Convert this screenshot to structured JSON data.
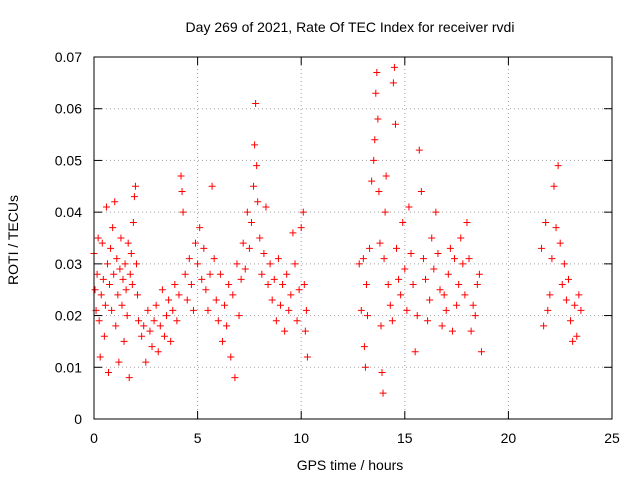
{
  "chart_data": {
    "type": "scatter",
    "title": "Day 269 of 2021, Rate Of TEC Index for receiver rvdi",
    "xlabel": "GPS time / hours",
    "ylabel": "ROTI / TECUs",
    "xlim": [
      0,
      25
    ],
    "ylim": [
      0,
      0.07
    ],
    "x_ticks": [
      0,
      5,
      10,
      15,
      20,
      25
    ],
    "x_tick_labels": [
      "0",
      "5",
      "10",
      "15",
      "20",
      "25"
    ],
    "y_ticks": [
      0,
      0.01,
      0.02,
      0.03,
      0.04,
      0.05,
      0.06,
      0.07
    ],
    "y_tick_labels": [
      "0",
      "0.01",
      "0.02",
      "0.03",
      "0.04",
      "0.05",
      "0.06",
      "0.07"
    ],
    "grid": true,
    "marker": "plus",
    "color": "#ff0000",
    "series": [
      {
        "points": [
          [
            0.0,
            0.032
          ],
          [
            0.05,
            0.025
          ],
          [
            0.1,
            0.021
          ],
          [
            0.15,
            0.028
          ],
          [
            0.2,
            0.035
          ],
          [
            0.25,
            0.019
          ],
          [
            0.3,
            0.012
          ],
          [
            0.35,
            0.024
          ],
          [
            0.4,
            0.034
          ],
          [
            0.45,
            0.027
          ],
          [
            0.5,
            0.016
          ],
          [
            0.55,
            0.022
          ],
          [
            0.6,
            0.041
          ],
          [
            0.65,
            0.03
          ],
          [
            0.7,
            0.009
          ],
          [
            0.75,
            0.026
          ],
          [
            0.8,
            0.033
          ],
          [
            0.85,
            0.021
          ],
          [
            0.9,
            0.037
          ],
          [
            0.95,
            0.028
          ],
          [
            1.0,
            0.042
          ],
          [
            1.05,
            0.018
          ],
          [
            1.1,
            0.031
          ],
          [
            1.15,
            0.024
          ],
          [
            1.2,
            0.011
          ],
          [
            1.25,
            0.029
          ],
          [
            1.3,
            0.035
          ],
          [
            1.35,
            0.022
          ],
          [
            1.4,
            0.027
          ],
          [
            1.45,
            0.015
          ],
          [
            1.5,
            0.03
          ],
          [
            1.55,
            0.025
          ],
          [
            1.6,
            0.02
          ],
          [
            1.65,
            0.034
          ],
          [
            1.7,
            0.008
          ],
          [
            1.75,
            0.028
          ],
          [
            1.8,
            0.032
          ],
          [
            1.85,
            0.026
          ],
          [
            1.9,
            0.038
          ],
          [
            1.95,
            0.043
          ],
          [
            2.0,
            0.045
          ],
          [
            2.05,
            0.03
          ],
          [
            2.1,
            0.024
          ],
          [
            2.15,
            0.019
          ],
          [
            2.3,
            0.016
          ],
          [
            2.4,
            0.018
          ],
          [
            2.5,
            0.011
          ],
          [
            2.6,
            0.021
          ],
          [
            2.7,
            0.017
          ],
          [
            2.8,
            0.014
          ],
          [
            2.9,
            0.019
          ],
          [
            3.0,
            0.022
          ],
          [
            3.1,
            0.013
          ],
          [
            3.2,
            0.018
          ],
          [
            3.3,
            0.025
          ],
          [
            3.4,
            0.016
          ],
          [
            3.5,
            0.02
          ],
          [
            3.6,
            0.023
          ],
          [
            3.7,
            0.015
          ],
          [
            3.8,
            0.021
          ],
          [
            3.9,
            0.026
          ],
          [
            4.0,
            0.019
          ],
          [
            4.1,
            0.024
          ],
          [
            4.2,
            0.047
          ],
          [
            4.25,
            0.044
          ],
          [
            4.3,
            0.04
          ],
          [
            4.4,
            0.028
          ],
          [
            4.5,
            0.023
          ],
          [
            4.6,
            0.031
          ],
          [
            4.7,
            0.026
          ],
          [
            4.8,
            0.021
          ],
          [
            4.9,
            0.034
          ],
          [
            5.0,
            0.03
          ],
          [
            5.1,
            0.037
          ],
          [
            5.2,
            0.027
          ],
          [
            5.3,
            0.033
          ],
          [
            5.4,
            0.025
          ],
          [
            5.5,
            0.021
          ],
          [
            5.6,
            0.028
          ],
          [
            5.7,
            0.045
          ],
          [
            5.8,
            0.031
          ],
          [
            5.9,
            0.023
          ],
          [
            6.0,
            0.019
          ],
          [
            6.1,
            0.028
          ],
          [
            6.2,
            0.015
          ],
          [
            6.3,
            0.022
          ],
          [
            6.4,
            0.018
          ],
          [
            6.5,
            0.026
          ],
          [
            6.6,
            0.012
          ],
          [
            6.7,
            0.024
          ],
          [
            6.8,
            0.008
          ],
          [
            6.9,
            0.03
          ],
          [
            7.0,
            0.02
          ],
          [
            7.1,
            0.027
          ],
          [
            7.2,
            0.034
          ],
          [
            7.3,
            0.029
          ],
          [
            7.4,
            0.04
          ],
          [
            7.5,
            0.033
          ],
          [
            7.6,
            0.038
          ],
          [
            7.7,
            0.045
          ],
          [
            7.75,
            0.053
          ],
          [
            7.8,
            0.061
          ],
          [
            7.85,
            0.049
          ],
          [
            7.9,
            0.042
          ],
          [
            8.0,
            0.035
          ],
          [
            8.1,
            0.028
          ],
          [
            8.2,
            0.032
          ],
          [
            8.3,
            0.041
          ],
          [
            8.4,
            0.026
          ],
          [
            8.5,
            0.03
          ],
          [
            8.6,
            0.023
          ],
          [
            8.7,
            0.027
          ],
          [
            8.8,
            0.019
          ],
          [
            8.9,
            0.031
          ],
          [
            9.0,
            0.022
          ],
          [
            9.1,
            0.026
          ],
          [
            9.2,
            0.017
          ],
          [
            9.3,
            0.028
          ],
          [
            9.4,
            0.021
          ],
          [
            9.5,
            0.024
          ],
          [
            9.6,
            0.036
          ],
          [
            9.7,
            0.03
          ],
          [
            9.8,
            0.019
          ],
          [
            9.9,
            0.025
          ],
          [
            10.0,
            0.037
          ],
          [
            10.1,
            0.04
          ],
          [
            10.15,
            0.026
          ],
          [
            10.2,
            0.017
          ],
          [
            10.25,
            0.021
          ],
          [
            10.3,
            0.012
          ],
          [
            12.8,
            0.03
          ],
          [
            12.9,
            0.021
          ],
          [
            13.0,
            0.031
          ],
          [
            13.05,
            0.014
          ],
          [
            13.1,
            0.01
          ],
          [
            13.15,
            0.026
          ],
          [
            13.2,
            0.02
          ],
          [
            13.3,
            0.033
          ],
          [
            13.4,
            0.046
          ],
          [
            13.5,
            0.05
          ],
          [
            13.55,
            0.054
          ],
          [
            13.6,
            0.063
          ],
          [
            13.65,
            0.067
          ],
          [
            13.7,
            0.058
          ],
          [
            13.75,
            0.044
          ],
          [
            13.8,
            0.034
          ],
          [
            13.85,
            0.018
          ],
          [
            13.9,
            0.009
          ],
          [
            13.95,
            0.005
          ],
          [
            14.0,
            0.031
          ],
          [
            14.05,
            0.04
          ],
          [
            14.1,
            0.047
          ],
          [
            14.2,
            0.026
          ],
          [
            14.3,
            0.022
          ],
          [
            14.4,
            0.019
          ],
          [
            14.45,
            0.065
          ],
          [
            14.5,
            0.068
          ],
          [
            14.55,
            0.057
          ],
          [
            14.6,
            0.033
          ],
          [
            14.7,
            0.027
          ],
          [
            14.8,
            0.024
          ],
          [
            14.9,
            0.038
          ],
          [
            15.0,
            0.029
          ],
          [
            15.1,
            0.021
          ],
          [
            15.2,
            0.041
          ],
          [
            15.3,
            0.032
          ],
          [
            15.4,
            0.026
          ],
          [
            15.5,
            0.013
          ],
          [
            15.6,
            0.02
          ],
          [
            15.7,
            0.052
          ],
          [
            15.8,
            0.044
          ],
          [
            15.9,
            0.031
          ],
          [
            16.0,
            0.027
          ],
          [
            16.1,
            0.019
          ],
          [
            16.2,
            0.023
          ],
          [
            16.3,
            0.035
          ],
          [
            16.4,
            0.029
          ],
          [
            16.5,
            0.04
          ],
          [
            16.6,
            0.032
          ],
          [
            16.7,
            0.025
          ],
          [
            16.8,
            0.018
          ],
          [
            16.9,
            0.024
          ],
          [
            17.0,
            0.021
          ],
          [
            17.1,
            0.028
          ],
          [
            17.2,
            0.033
          ],
          [
            17.3,
            0.017
          ],
          [
            17.4,
            0.031
          ],
          [
            17.5,
            0.022
          ],
          [
            17.6,
            0.026
          ],
          [
            17.7,
            0.035
          ],
          [
            17.8,
            0.03
          ],
          [
            17.9,
            0.024
          ],
          [
            18.0,
            0.038
          ],
          [
            18.1,
            0.031
          ],
          [
            18.2,
            0.017
          ],
          [
            18.3,
            0.022
          ],
          [
            18.4,
            0.02
          ],
          [
            18.5,
            0.026
          ],
          [
            18.6,
            0.028
          ],
          [
            18.7,
            0.013
          ],
          [
            21.6,
            0.033
          ],
          [
            21.7,
            0.018
          ],
          [
            21.8,
            0.038
          ],
          [
            21.9,
            0.021
          ],
          [
            22.0,
            0.024
          ],
          [
            22.1,
            0.031
          ],
          [
            22.2,
            0.045
          ],
          [
            22.3,
            0.037
          ],
          [
            22.4,
            0.049
          ],
          [
            22.5,
            0.034
          ],
          [
            22.6,
            0.026
          ],
          [
            22.7,
            0.03
          ],
          [
            22.8,
            0.023
          ],
          [
            22.9,
            0.027
          ],
          [
            23.0,
            0.019
          ],
          [
            23.1,
            0.015
          ],
          [
            23.2,
            0.022
          ],
          [
            23.3,
            0.016
          ],
          [
            23.4,
            0.024
          ],
          [
            23.5,
            0.021
          ]
        ]
      }
    ]
  }
}
